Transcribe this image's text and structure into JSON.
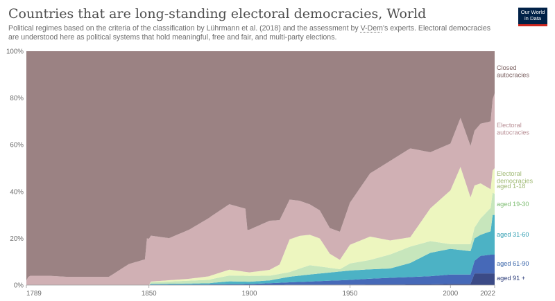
{
  "header": {
    "title": "Countries that are long-standing electoral democracies, World",
    "subtitle_pre": "Political regimes based on the criteria of the classification by Lührmann et al. (2018) and the assessment by ",
    "subtitle_link": "V-Dem",
    "subtitle_post": "'s experts. Electoral democracies are understood here as political systems that hold meaningful, free and fair, and multi-party elections.",
    "logo_line1": "Our World",
    "logo_line2": "in Data"
  },
  "chart_data": {
    "type": "area",
    "stacked": "percent",
    "title": "Countries that are long-standing electoral democracies, World",
    "x_ticks": [
      "1789",
      "1850",
      "1900",
      "1950",
      "2000",
      "2022"
    ],
    "y_ticks": [
      "0%",
      "20%",
      "40%",
      "60%",
      "80%",
      "100%"
    ],
    "xlim": [
      1789,
      2022
    ],
    "ylim": [
      0,
      100
    ],
    "grid": "horizontal",
    "legend_position": "right",
    "series": [
      {
        "name": "aged 91 +",
        "color": "#3b4a86",
        "x": [
          1789,
          1880,
          1881,
          1990,
          2000,
          2010,
          2012,
          2022
        ],
        "values": [
          0,
          0,
          0.1,
          0.3,
          0.5,
          0.5,
          5,
          5
        ]
      },
      {
        "name": "aged 61-90",
        "color": "#4669b8",
        "x": [
          1789,
          1850,
          1851,
          1900,
          1920,
          1950,
          1960,
          1990,
          2000,
          2010,
          2015,
          2020,
          2022
        ],
        "values": [
          0,
          0,
          0.2,
          0.3,
          1,
          2,
          2.5,
          3.5,
          4,
          4,
          7.5,
          8,
          8
        ]
      },
      {
        "name": "aged 31-60",
        "color": "#4cb2c5",
        "x": [
          1789,
          1850,
          1851,
          1880,
          1890,
          1900,
          1910,
          1920,
          1930,
          1950,
          1970,
          1980,
          1990,
          2000,
          2010,
          2015,
          2020,
          2021,
          2022
        ],
        "values": [
          0,
          0,
          0.3,
          0.5,
          1.2,
          1,
          1.2,
          2.4,
          3,
          4,
          4,
          6,
          10,
          11,
          10,
          9,
          10,
          17,
          17
        ]
      },
      {
        "name": "aged 19-30",
        "color": "#c7e6bc",
        "x": [
          1789,
          1850,
          1851,
          1880,
          1890,
          1900,
          1910,
          1920,
          1930,
          1945,
          1950,
          1960,
          1970,
          1980,
          1990,
          2000,
          2010,
          2015,
          2020,
          2022
        ],
        "values": [
          0,
          0,
          0.7,
          1.5,
          2.5,
          2.5,
          2,
          2,
          4,
          1,
          3,
          4,
          6,
          7,
          5,
          2,
          3,
          7,
          10,
          9
        ]
      },
      {
        "name": "aged 1-18",
        "color": "#edf6bf",
        "x": [
          1789,
          1850,
          1851,
          1870,
          1880,
          1890,
          1900,
          1910,
          1915,
          1920,
          1925,
          1935,
          1940,
          1945,
          1950,
          1960,
          1970,
          1980,
          1990,
          2000,
          2005,
          2010,
          2015,
          2020,
          2022
        ],
        "values": [
          0,
          0,
          0.3,
          0.8,
          1.5,
          2.5,
          1.5,
          2.5,
          4,
          14,
          14,
          12,
          6,
          4,
          8,
          10,
          6,
          4,
          14,
          23,
          33,
          20,
          15,
          8,
          11
        ]
      },
      {
        "name": "Electoral autocracies",
        "color": "#d0b0b4",
        "x": [
          1789,
          1790,
          1791,
          1800,
          1810,
          1820,
          1830,
          1840,
          1848,
          1849,
          1860,
          1870,
          1880,
          1890,
          1898,
          1899,
          1910,
          1920,
          1930,
          1940,
          1945,
          1950,
          1960,
          1970,
          1980,
          1990,
          2000,
          2010,
          2020,
          2022
        ],
        "values": [
          2,
          3.5,
          4,
          4,
          3.5,
          3.5,
          3.5,
          9,
          11,
          20,
          18,
          21,
          25,
          28,
          27,
          18,
          21,
          17,
          13,
          11,
          12,
          18,
          27,
          34,
          38,
          24,
          20,
          22,
          29,
          32
        ]
      },
      {
        "name": "Closed autocracies",
        "color": "#9b8283",
        "x": [
          1789,
          2022
        ],
        "values": [
          98,
          16
        ]
      }
    ],
    "legend": [
      {
        "key": "closed",
        "lines": [
          "Closed",
          "autocracies"
        ],
        "color": "#7b6161"
      },
      {
        "key": "electoral-autocracies",
        "lines": [
          "Electoral",
          "autocracies"
        ],
        "color": "#b88f95"
      },
      {
        "key": "electoral-democracies",
        "lines": [
          "Electoral",
          "democracies"
        ],
        "color": "#9eb872"
      },
      {
        "key": "aged-1-18",
        "lines": [
          "aged 1-18"
        ],
        "color": "#9eb872"
      },
      {
        "key": "aged-19-30",
        "lines": [
          "aged 19-30"
        ],
        "color": "#7ebd72"
      },
      {
        "key": "aged-31-60",
        "lines": [
          "aged 31-60"
        ],
        "color": "#2f9db1"
      },
      {
        "key": "aged-61-90",
        "lines": [
          "aged 61-90"
        ],
        "color": "#3562a8"
      },
      {
        "key": "aged-91",
        "lines": [
          "aged 91 +"
        ],
        "color": "#2a3a78"
      }
    ]
  }
}
